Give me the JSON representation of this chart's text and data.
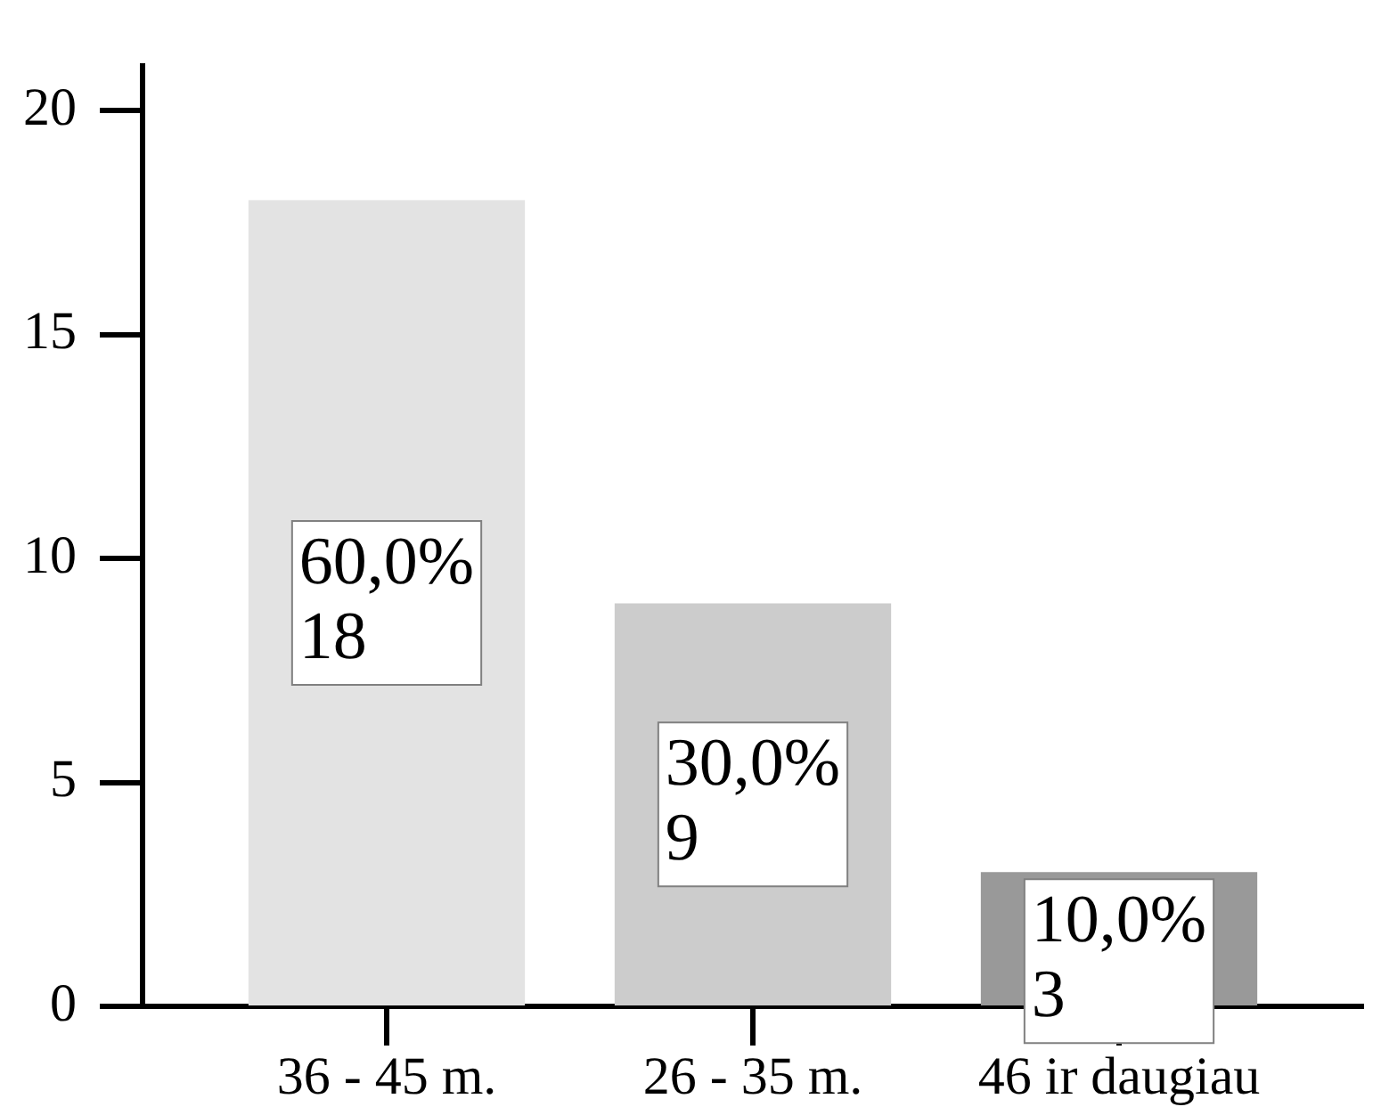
{
  "chart_data": {
    "type": "bar",
    "categories": [
      "36 - 45 m.",
      "26 - 35 m.",
      "46 ir daugiau"
    ],
    "values": [
      18,
      9,
      3
    ],
    "colors": [
      "#e3e3e3",
      "#cccccc",
      "#999999"
    ],
    "value_labels": [
      "60,0%\n18",
      "30,0%\n9",
      "10,0%\n3"
    ],
    "ylim": [
      0,
      21
    ],
    "yticks": [
      0,
      5,
      10,
      15,
      20
    ]
  }
}
